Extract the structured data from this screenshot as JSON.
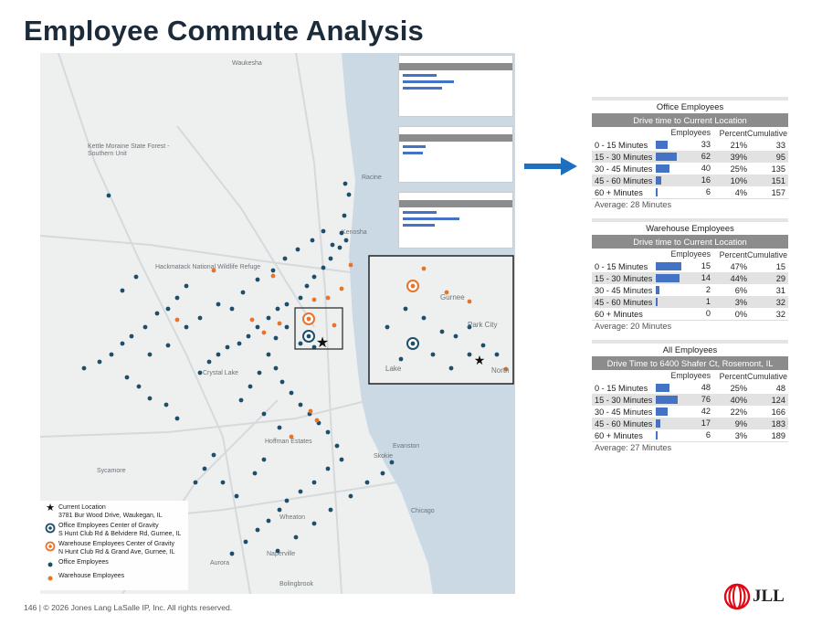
{
  "page": {
    "title": "Employee Commute Analysis"
  },
  "map": {
    "place_labels": [
      "Waukesha",
      "Kettle Moraine State Forest - Southern Unit",
      "Racine",
      "Kenosha",
      "Hackmatack National Wildlife Refuge",
      "Crystal Lake",
      "Hoffman Estates",
      "Evanston",
      "Skokie",
      "Sycamore",
      "Wheaton",
      "Aurora",
      "Naperville",
      "Chicago",
      "Bolingbrook"
    ],
    "inset_labels": [
      "Gurnee",
      "Park City",
      "Lake",
      "North"
    ],
    "legend": [
      {
        "icon": "star-icon",
        "text": "Current Location",
        "sub": "3781 Bur Wood Drive, Waukegan, IL"
      },
      {
        "icon": "office-gravity-icon",
        "text": "Office Employees Center of Gravity",
        "sub": "S Hunt Club Rd & Belvidere Rd, Gurnee, IL"
      },
      {
        "icon": "warehouse-gravity-icon",
        "text": "Warehouse Employees Center of Gravity",
        "sub": "N Hunt Club Rd & Grand Ave, Gurnee, IL"
      },
      {
        "icon": "office-dot-icon",
        "text": "Office Employees",
        "sub": ""
      },
      {
        "icon": "warehouse-dot-icon",
        "text": "Warehouse Employees",
        "sub": ""
      }
    ],
    "colors": {
      "office": "#1f4e6b",
      "warehouse": "#e8742a",
      "water": "#cbd9e4",
      "land": "#eef0f0"
    }
  },
  "stats": {
    "headers": {
      "employees": "Employees",
      "percent": "Percent",
      "cumulative": "Cumulative"
    },
    "panels": [
      {
        "title": "Office Employees",
        "subtitle": "Drive time to Current Location",
        "rows": [
          {
            "label": "0 - 15 Minutes",
            "employees": "33",
            "percent": "21%",
            "cumulative": "33",
            "share": 0.21
          },
          {
            "label": "15 - 30 Minutes",
            "employees": "62",
            "percent": "39%",
            "cumulative": "95",
            "share": 0.39
          },
          {
            "label": "30 - 45 Minutes",
            "employees": "40",
            "percent": "25%",
            "cumulative": "135",
            "share": 0.25
          },
          {
            "label": "45 - 60 Minutes",
            "employees": "16",
            "percent": "10%",
            "cumulative": "151",
            "share": 0.1
          },
          {
            "label": "60 + Minutes",
            "employees": "6",
            "percent": "4%",
            "cumulative": "157",
            "share": 0.04
          }
        ],
        "average": "Average: 28 Minutes"
      },
      {
        "title": "Warehouse Employees",
        "subtitle": "Drive time to Current Location",
        "rows": [
          {
            "label": "0 - 15 Minutes",
            "employees": "15",
            "percent": "47%",
            "cumulative": "15",
            "share": 0.47
          },
          {
            "label": "15 - 30 Minutes",
            "employees": "14",
            "percent": "44%",
            "cumulative": "29",
            "share": 0.44
          },
          {
            "label": "30 - 45 Minutes",
            "employees": "2",
            "percent": "6%",
            "cumulative": "31",
            "share": 0.06
          },
          {
            "label": "45 - 60 Minutes",
            "employees": "1",
            "percent": "3%",
            "cumulative": "32",
            "share": 0.03
          },
          {
            "label": "60 + Minutes",
            "employees": "0",
            "percent": "0%",
            "cumulative": "32",
            "share": 0.0
          }
        ],
        "average": "Average: 20 Minutes"
      },
      {
        "title": "All Employees",
        "subtitle": "Drive Time to 6400 Shafer Ct, Rosemont, IL",
        "rows": [
          {
            "label": "0 - 15 Minutes",
            "employees": "48",
            "percent": "25%",
            "cumulative": "48",
            "share": 0.25
          },
          {
            "label": "15 - 30 Minutes",
            "employees": "76",
            "percent": "40%",
            "cumulative": "124",
            "share": 0.4
          },
          {
            "label": "30 - 45 Minutes",
            "employees": "42",
            "percent": "22%",
            "cumulative": "166",
            "share": 0.22
          },
          {
            "label": "45 - 60 Minutes",
            "employees": "17",
            "percent": "9%",
            "cumulative": "183",
            "share": 0.09
          },
          {
            "label": "60 + Minutes",
            "employees": "6",
            "percent": "3%",
            "cumulative": "189",
            "share": 0.03
          }
        ],
        "average": "Average: 27 Minutes"
      }
    ]
  },
  "footer": {
    "text": "146  |  © 2026 Jones Lang LaSalle IP, Inc. All rights reserved."
  },
  "logo": {
    "text": "JLL"
  }
}
